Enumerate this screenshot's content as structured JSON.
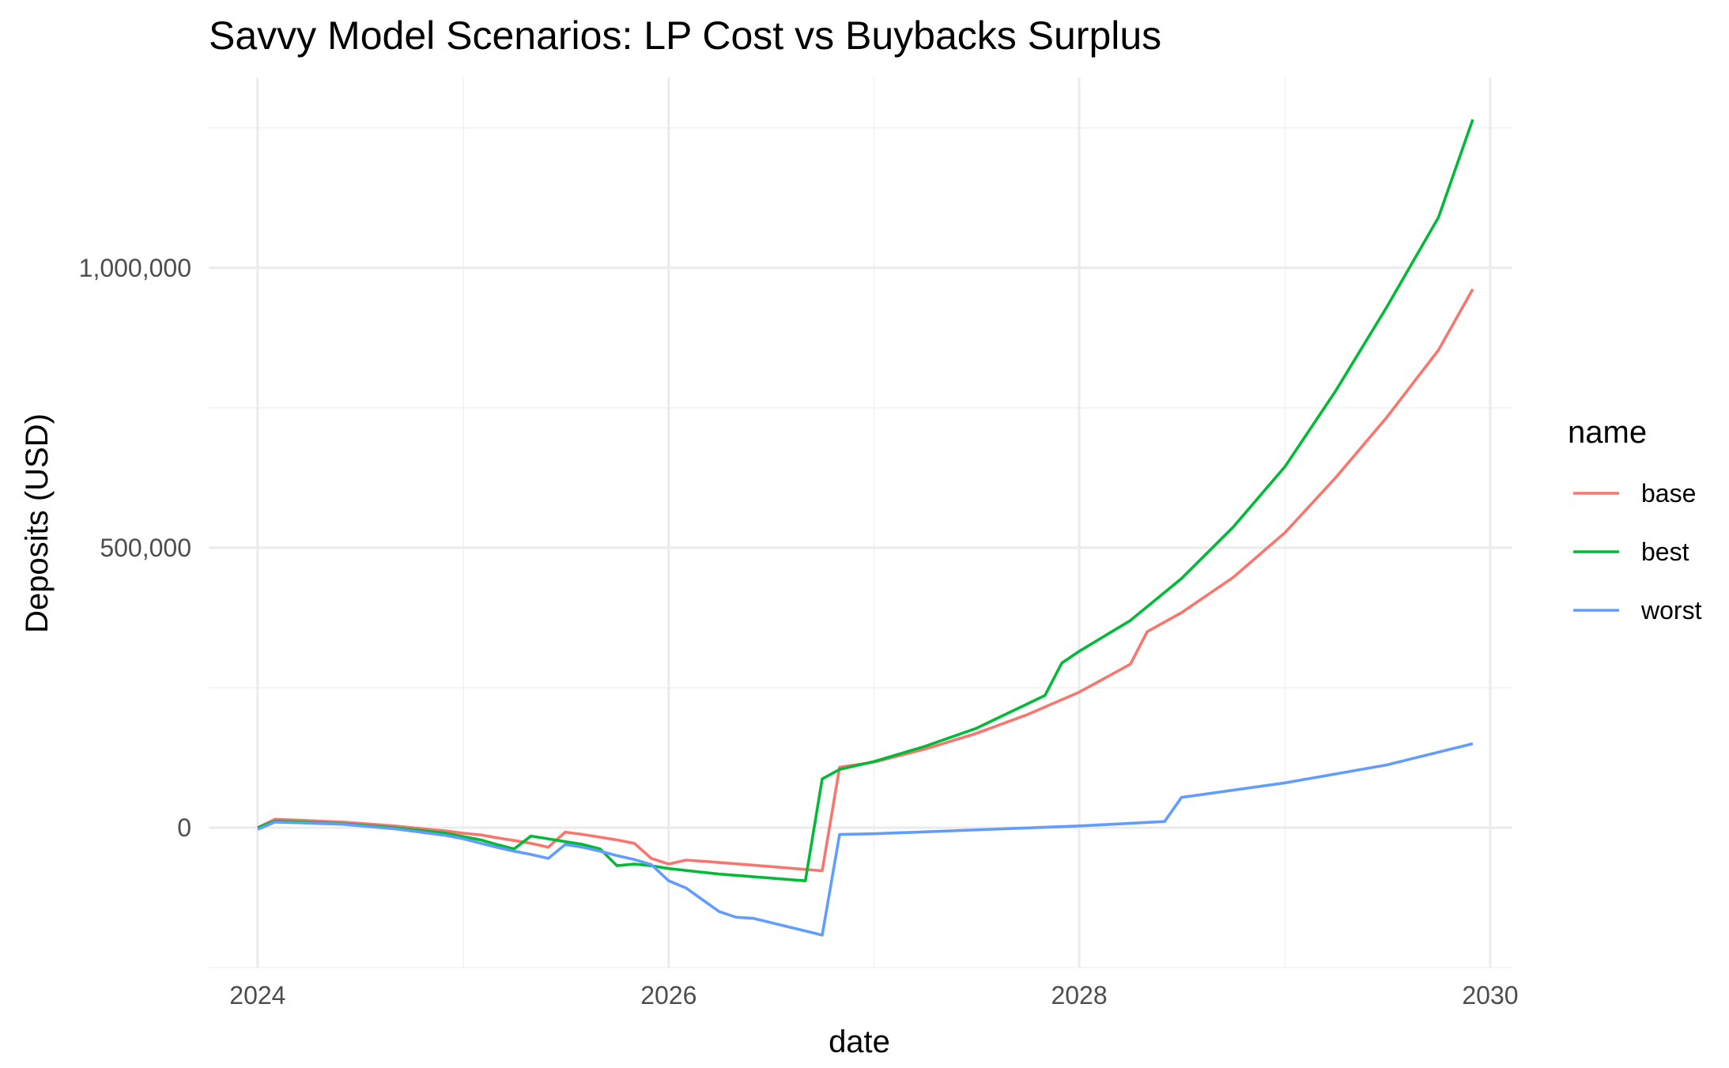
{
  "chart_data": {
    "type": "line",
    "title": "Savvy Model Scenarios: LP Cost vs Buybacks Surplus",
    "xlabel": "date",
    "ylabel": "Deposits (USD)",
    "x_axis": {
      "scale": "date",
      "range": [
        "2023-10-06",
        "2030-02-08"
      ],
      "major_ticks": [
        "2024-01-01",
        "2026-01-01",
        "2028-01-01",
        "2030-01-01"
      ],
      "major_tick_labels": [
        "2024",
        "2026",
        "2028",
        "2030"
      ],
      "minor_ticks": [
        "2025-01-01",
        "2027-01-01",
        "2029-01-01"
      ]
    },
    "y_axis": {
      "range": [
        -250000,
        1340000
      ],
      "major_ticks": [
        0,
        500000,
        1000000
      ],
      "major_tick_labels": [
        "0",
        "500,000",
        "1,000,000"
      ],
      "minor_ticks": [
        -250000,
        250000,
        750000,
        1250000
      ]
    },
    "grid": true,
    "legend": {
      "title": "name",
      "position": "right"
    },
    "series": [
      {
        "name": "base",
        "color": "#F8766D",
        "points": [
          [
            "2024-01-01",
            0
          ],
          [
            "2024-02-01",
            15000
          ],
          [
            "2024-06-01",
            10000
          ],
          [
            "2024-09-01",
            3000
          ],
          [
            "2024-12-01",
            -6000
          ],
          [
            "2025-01-01",
            -10000
          ],
          [
            "2025-02-01",
            -13000
          ],
          [
            "2025-03-01",
            -18000
          ],
          [
            "2025-04-01",
            -23000
          ],
          [
            "2025-05-01",
            -28000
          ],
          [
            "2025-06-01",
            -35000
          ],
          [
            "2025-07-01",
            -8000
          ],
          [
            "2025-08-01",
            -12000
          ],
          [
            "2025-09-01",
            -17000
          ],
          [
            "2025-10-01",
            -22000
          ],
          [
            "2025-11-01",
            -28000
          ],
          [
            "2025-12-01",
            -55000
          ],
          [
            "2026-01-01",
            -65000
          ],
          [
            "2026-02-01",
            -58000
          ],
          [
            "2026-03-01",
            -60000
          ],
          [
            "2026-06-01",
            -67000
          ],
          [
            "2026-10-01",
            -77000
          ],
          [
            "2026-11-01",
            108000
          ],
          [
            "2027-01-01",
            117000
          ],
          [
            "2027-04-01",
            140000
          ],
          [
            "2027-07-01",
            168000
          ],
          [
            "2027-10-01",
            202000
          ],
          [
            "2028-01-01",
            242000
          ],
          [
            "2028-04-01",
            292000
          ],
          [
            "2028-05-01",
            350000
          ],
          [
            "2028-07-01",
            384000
          ],
          [
            "2028-10-01",
            447000
          ],
          [
            "2029-01-01",
            527000
          ],
          [
            "2029-04-01",
            625000
          ],
          [
            "2029-07-01",
            733000
          ],
          [
            "2029-10-01",
            853000
          ],
          [
            "2029-12-01",
            962000
          ]
        ]
      },
      {
        "name": "best",
        "color": "#00BA38",
        "points": [
          [
            "2024-01-01",
            0
          ],
          [
            "2024-02-01",
            12000
          ],
          [
            "2024-06-01",
            7000
          ],
          [
            "2024-09-01",
            0
          ],
          [
            "2024-12-01",
            -10000
          ],
          [
            "2025-01-01",
            -16000
          ],
          [
            "2025-02-01",
            -22000
          ],
          [
            "2025-03-01",
            -30000
          ],
          [
            "2025-04-01",
            -38000
          ],
          [
            "2025-05-01",
            -15000
          ],
          [
            "2025-06-01",
            -20000
          ],
          [
            "2025-07-01",
            -25000
          ],
          [
            "2025-08-01",
            -30000
          ],
          [
            "2025-09-01",
            -38000
          ],
          [
            "2025-10-01",
            -68000
          ],
          [
            "2025-11-01",
            -65000
          ],
          [
            "2025-12-01",
            -68000
          ],
          [
            "2026-01-01",
            -73000
          ],
          [
            "2026-04-01",
            -83000
          ],
          [
            "2026-09-01",
            -95000
          ],
          [
            "2026-10-01",
            87000
          ],
          [
            "2026-11-01",
            104000
          ],
          [
            "2027-01-01",
            118000
          ],
          [
            "2027-04-01",
            145000
          ],
          [
            "2027-07-01",
            177000
          ],
          [
            "2027-11-01",
            236000
          ],
          [
            "2027-12-01",
            294000
          ],
          [
            "2028-01-01",
            315000
          ],
          [
            "2028-04-01",
            370000
          ],
          [
            "2028-07-01",
            445000
          ],
          [
            "2028-10-01",
            537000
          ],
          [
            "2029-01-01",
            645000
          ],
          [
            "2029-04-01",
            780000
          ],
          [
            "2029-07-01",
            930000
          ],
          [
            "2029-10-01",
            1090000
          ],
          [
            "2029-12-01",
            1265000
          ]
        ]
      },
      {
        "name": "worst",
        "color": "#619CFF",
        "points": [
          [
            "2024-01-01",
            -3000
          ],
          [
            "2024-02-01",
            10000
          ],
          [
            "2024-06-01",
            6000
          ],
          [
            "2024-09-01",
            -2000
          ],
          [
            "2024-12-01",
            -14000
          ],
          [
            "2025-01-01",
            -20000
          ],
          [
            "2025-02-01",
            -28000
          ],
          [
            "2025-03-01",
            -35000
          ],
          [
            "2025-04-01",
            -42000
          ],
          [
            "2025-05-01",
            -48000
          ],
          [
            "2025-06-01",
            -55000
          ],
          [
            "2025-07-01",
            -30000
          ],
          [
            "2025-08-01",
            -35000
          ],
          [
            "2025-09-01",
            -42000
          ],
          [
            "2025-10-01",
            -50000
          ],
          [
            "2025-11-01",
            -57000
          ],
          [
            "2025-12-01",
            -66000
          ],
          [
            "2026-01-01",
            -95000
          ],
          [
            "2026-02-01",
            -108000
          ],
          [
            "2026-03-01",
            -128000
          ],
          [
            "2026-04-01",
            -150000
          ],
          [
            "2026-05-01",
            -160000
          ],
          [
            "2026-06-01",
            -162000
          ],
          [
            "2026-10-01",
            -192000
          ],
          [
            "2026-11-01",
            -12000
          ],
          [
            "2027-01-01",
            -11000
          ],
          [
            "2028-01-01",
            3000
          ],
          [
            "2028-06-01",
            11000
          ],
          [
            "2028-07-01",
            54000
          ],
          [
            "2029-01-01",
            80000
          ],
          [
            "2029-07-01",
            112000
          ],
          [
            "2029-12-01",
            150000
          ]
        ]
      }
    ]
  }
}
